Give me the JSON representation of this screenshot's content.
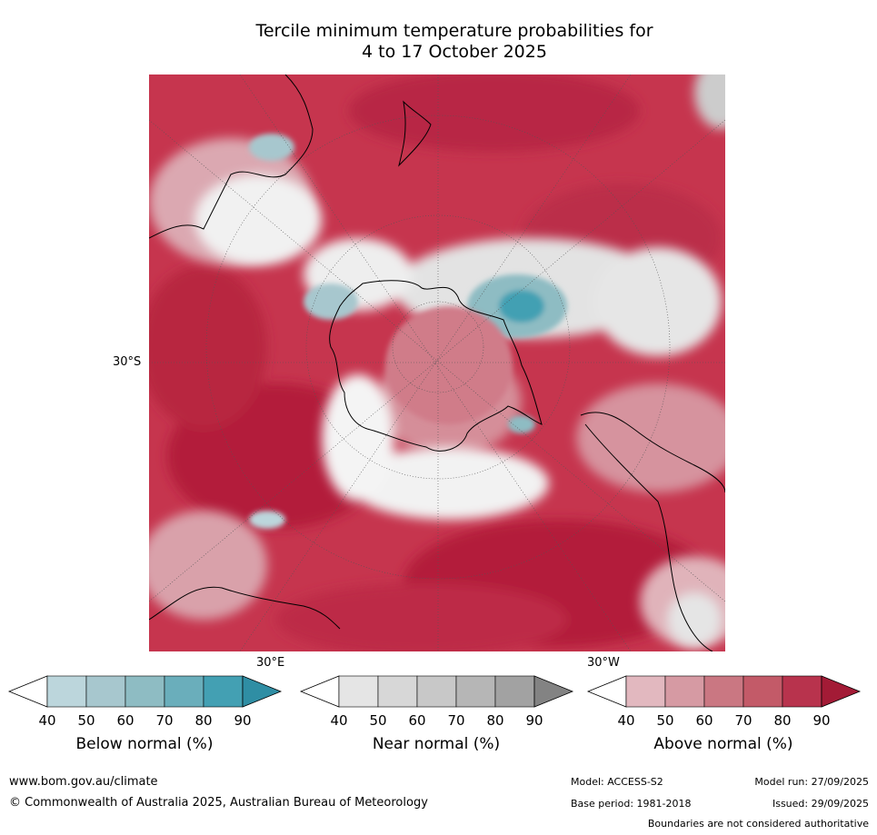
{
  "title": {
    "line1": "Tercile minimum temperature probabilities for",
    "line2": "4 to 17 October 2025"
  },
  "map": {
    "projection": "south polar stereographic",
    "labels": {
      "lat_left": "30°S",
      "lon_bottom_left": "30°E",
      "lon_bottom_right": "30°W"
    },
    "colors": {
      "ocean_dominant": "#c6354e",
      "coastline": "#000000",
      "gridline": "#555555"
    }
  },
  "legend": {
    "below": {
      "title": "Below normal (%)",
      "ticks": [
        "40",
        "50",
        "60",
        "70",
        "80",
        "90"
      ],
      "colors": [
        "#ffffff",
        "#bcd6dc",
        "#a7c7ce",
        "#8ebcc3",
        "#6aaebb",
        "#43a0b3",
        "#2f8ea4"
      ]
    },
    "near": {
      "title": "Near normal (%)",
      "ticks": [
        "40",
        "50",
        "60",
        "70",
        "80",
        "90"
      ],
      "colors": [
        "#ffffff",
        "#e5e5e5",
        "#d7d7d7",
        "#c8c8c8",
        "#b6b6b6",
        "#a2a2a2",
        "#838383"
      ]
    },
    "above": {
      "title": "Above normal (%)",
      "ticks": [
        "40",
        "50",
        "60",
        "70",
        "80",
        "90"
      ],
      "colors": [
        "#ffffff",
        "#e2b8bf",
        "#d69aa3",
        "#ca7782",
        "#c35a68",
        "#b8334d",
        "#a31b36"
      ]
    }
  },
  "footer": {
    "website": "www.bom.gov.au/climate",
    "copyright": "© Commonwealth of Australia 2025, Australian Bureau of Meteorology",
    "model": "Model: ACCESS-S2",
    "model_run": "Model run: 27/09/2025",
    "base_period": "Base period: 1981-2018",
    "issued": "Issued: 29/09/2025",
    "disclaimer": "Boundaries are not considered authoritative"
  }
}
